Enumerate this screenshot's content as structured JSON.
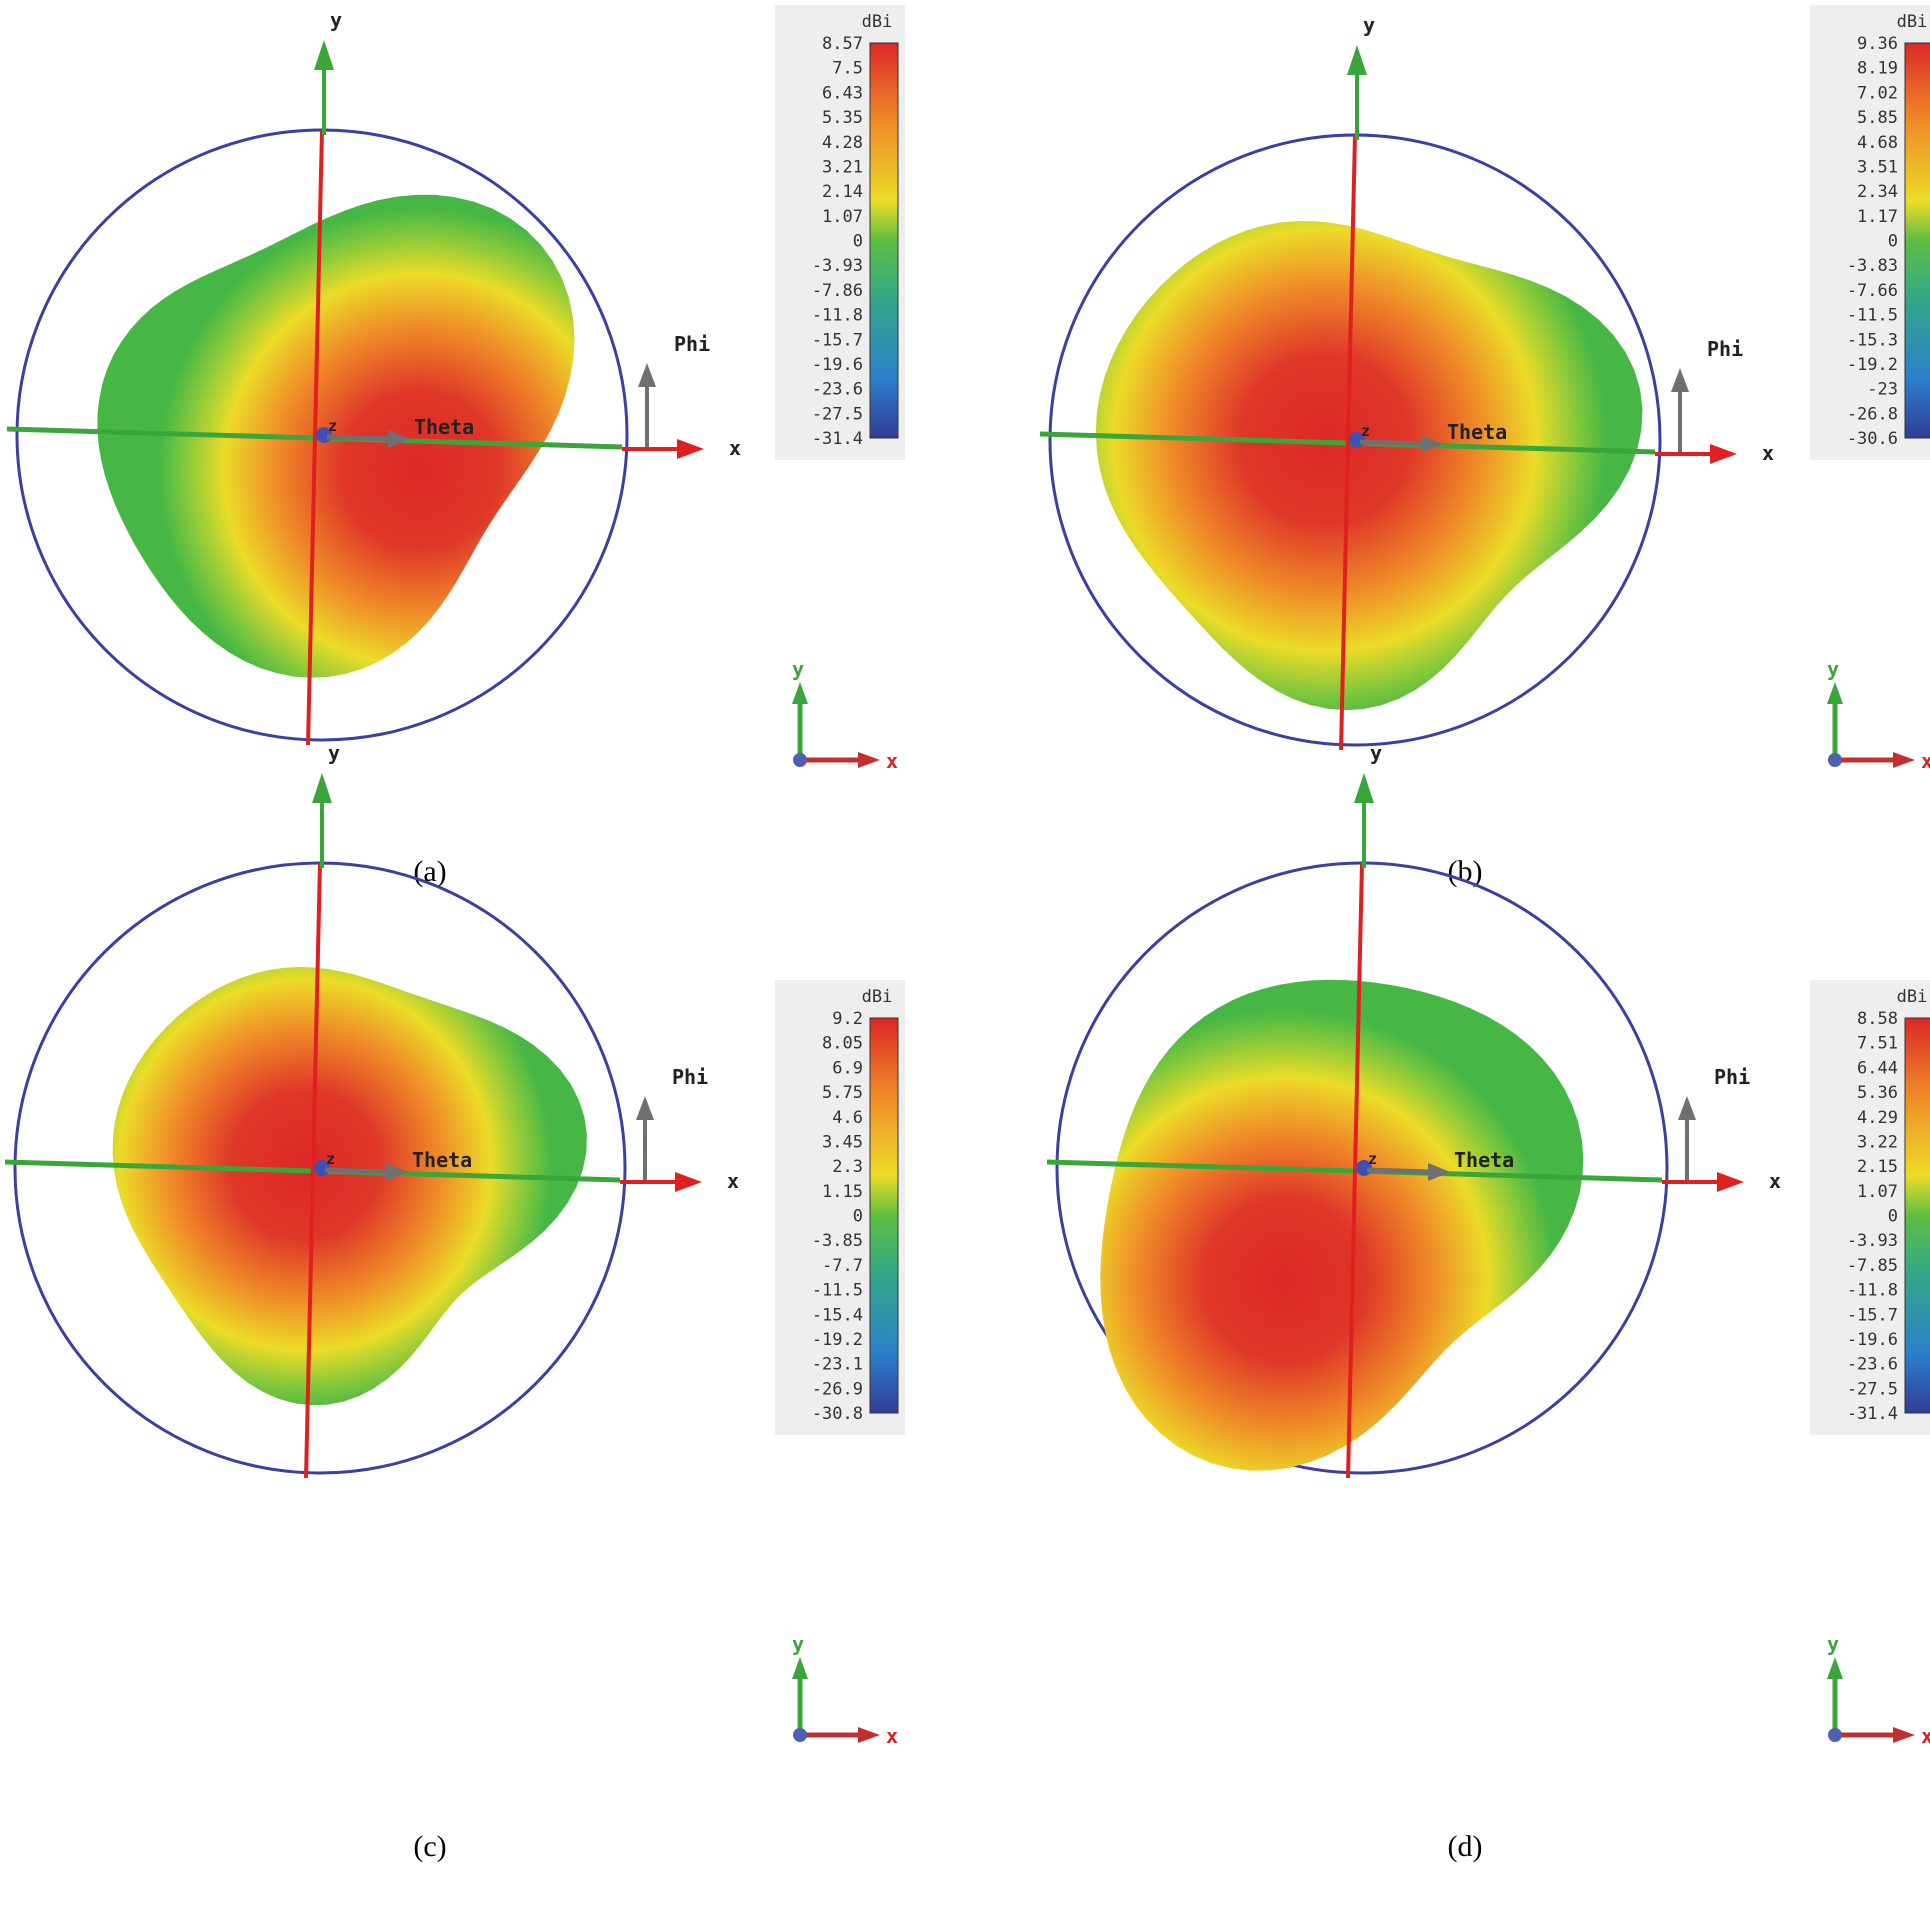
{
  "chart_data": [
    {
      "type": "heatmap",
      "id": "a",
      "caption": "(a)",
      "colorbar_unit": "dBi",
      "colorbar_ticks": [
        "8.57",
        "7.5",
        "6.43",
        "5.35",
        "4.28",
        "3.21",
        "2.14",
        "1.07",
        "0",
        "-3.93",
        "-7.86",
        "-11.8",
        "-15.7",
        "-19.6",
        "-23.6",
        "-27.5",
        "-31.4"
      ],
      "range": [
        -31.4,
        8.57
      ],
      "axis_labels": {
        "y": "y",
        "x": "x",
        "z": "z",
        "theta": "Theta",
        "phi": "Phi"
      },
      "triad_labels": {
        "x": "x",
        "y": "y"
      }
    },
    {
      "type": "heatmap",
      "id": "b",
      "caption": "(b)",
      "colorbar_unit": "dBi",
      "colorbar_ticks": [
        "9.36",
        "8.19",
        "7.02",
        "5.85",
        "4.68",
        "3.51",
        "2.34",
        "1.17",
        "0",
        "-3.83",
        "-7.66",
        "-11.5",
        "-15.3",
        "-19.2",
        "-23",
        "-26.8",
        "-30.6"
      ],
      "range": [
        -30.6,
        9.36
      ],
      "axis_labels": {
        "y": "y",
        "x": "x",
        "z": "z",
        "theta": "Theta",
        "phi": "Phi"
      },
      "triad_labels": {
        "x": "x",
        "y": "y"
      }
    },
    {
      "type": "heatmap",
      "id": "c",
      "caption": "(c)",
      "colorbar_unit": "dBi",
      "colorbar_ticks": [
        "9.2",
        "8.05",
        "6.9",
        "5.75",
        "4.6",
        "3.45",
        "2.3",
        "1.15",
        "0",
        "-3.85",
        "-7.7",
        "-11.5",
        "-15.4",
        "-19.2",
        "-23.1",
        "-26.9",
        "-30.8"
      ],
      "range": [
        -30.8,
        9.2
      ],
      "axis_labels": {
        "y": "y",
        "x": "x",
        "z": "z",
        "theta": "Theta",
        "phi": "Phi"
      },
      "triad_labels": {
        "x": "x",
        "y": "y"
      }
    },
    {
      "type": "heatmap",
      "id": "d",
      "caption": "(d)",
      "colorbar_unit": "dBi",
      "colorbar_ticks": [
        "8.58",
        "7.51",
        "6.44",
        "5.36",
        "4.29",
        "3.22",
        "2.15",
        "1.07",
        "0",
        "-3.93",
        "-7.85",
        "-11.8",
        "-15.7",
        "-19.6",
        "-23.6",
        "-27.5",
        "-31.4"
      ],
      "range": [
        -31.4,
        8.58
      ],
      "axis_labels": {
        "y": "y",
        "x": "x",
        "z": "z",
        "theta": "Theta",
        "phi": "Phi"
      },
      "triad_labels": {
        "x": "x",
        "y": "y"
      }
    }
  ],
  "colors": {
    "circle": "#3b3fa0",
    "axis_red": "#e02020",
    "axis_green": "#3aa63a",
    "arrow_gray": "#707070",
    "colorbar_bg": "#eeeeee"
  }
}
